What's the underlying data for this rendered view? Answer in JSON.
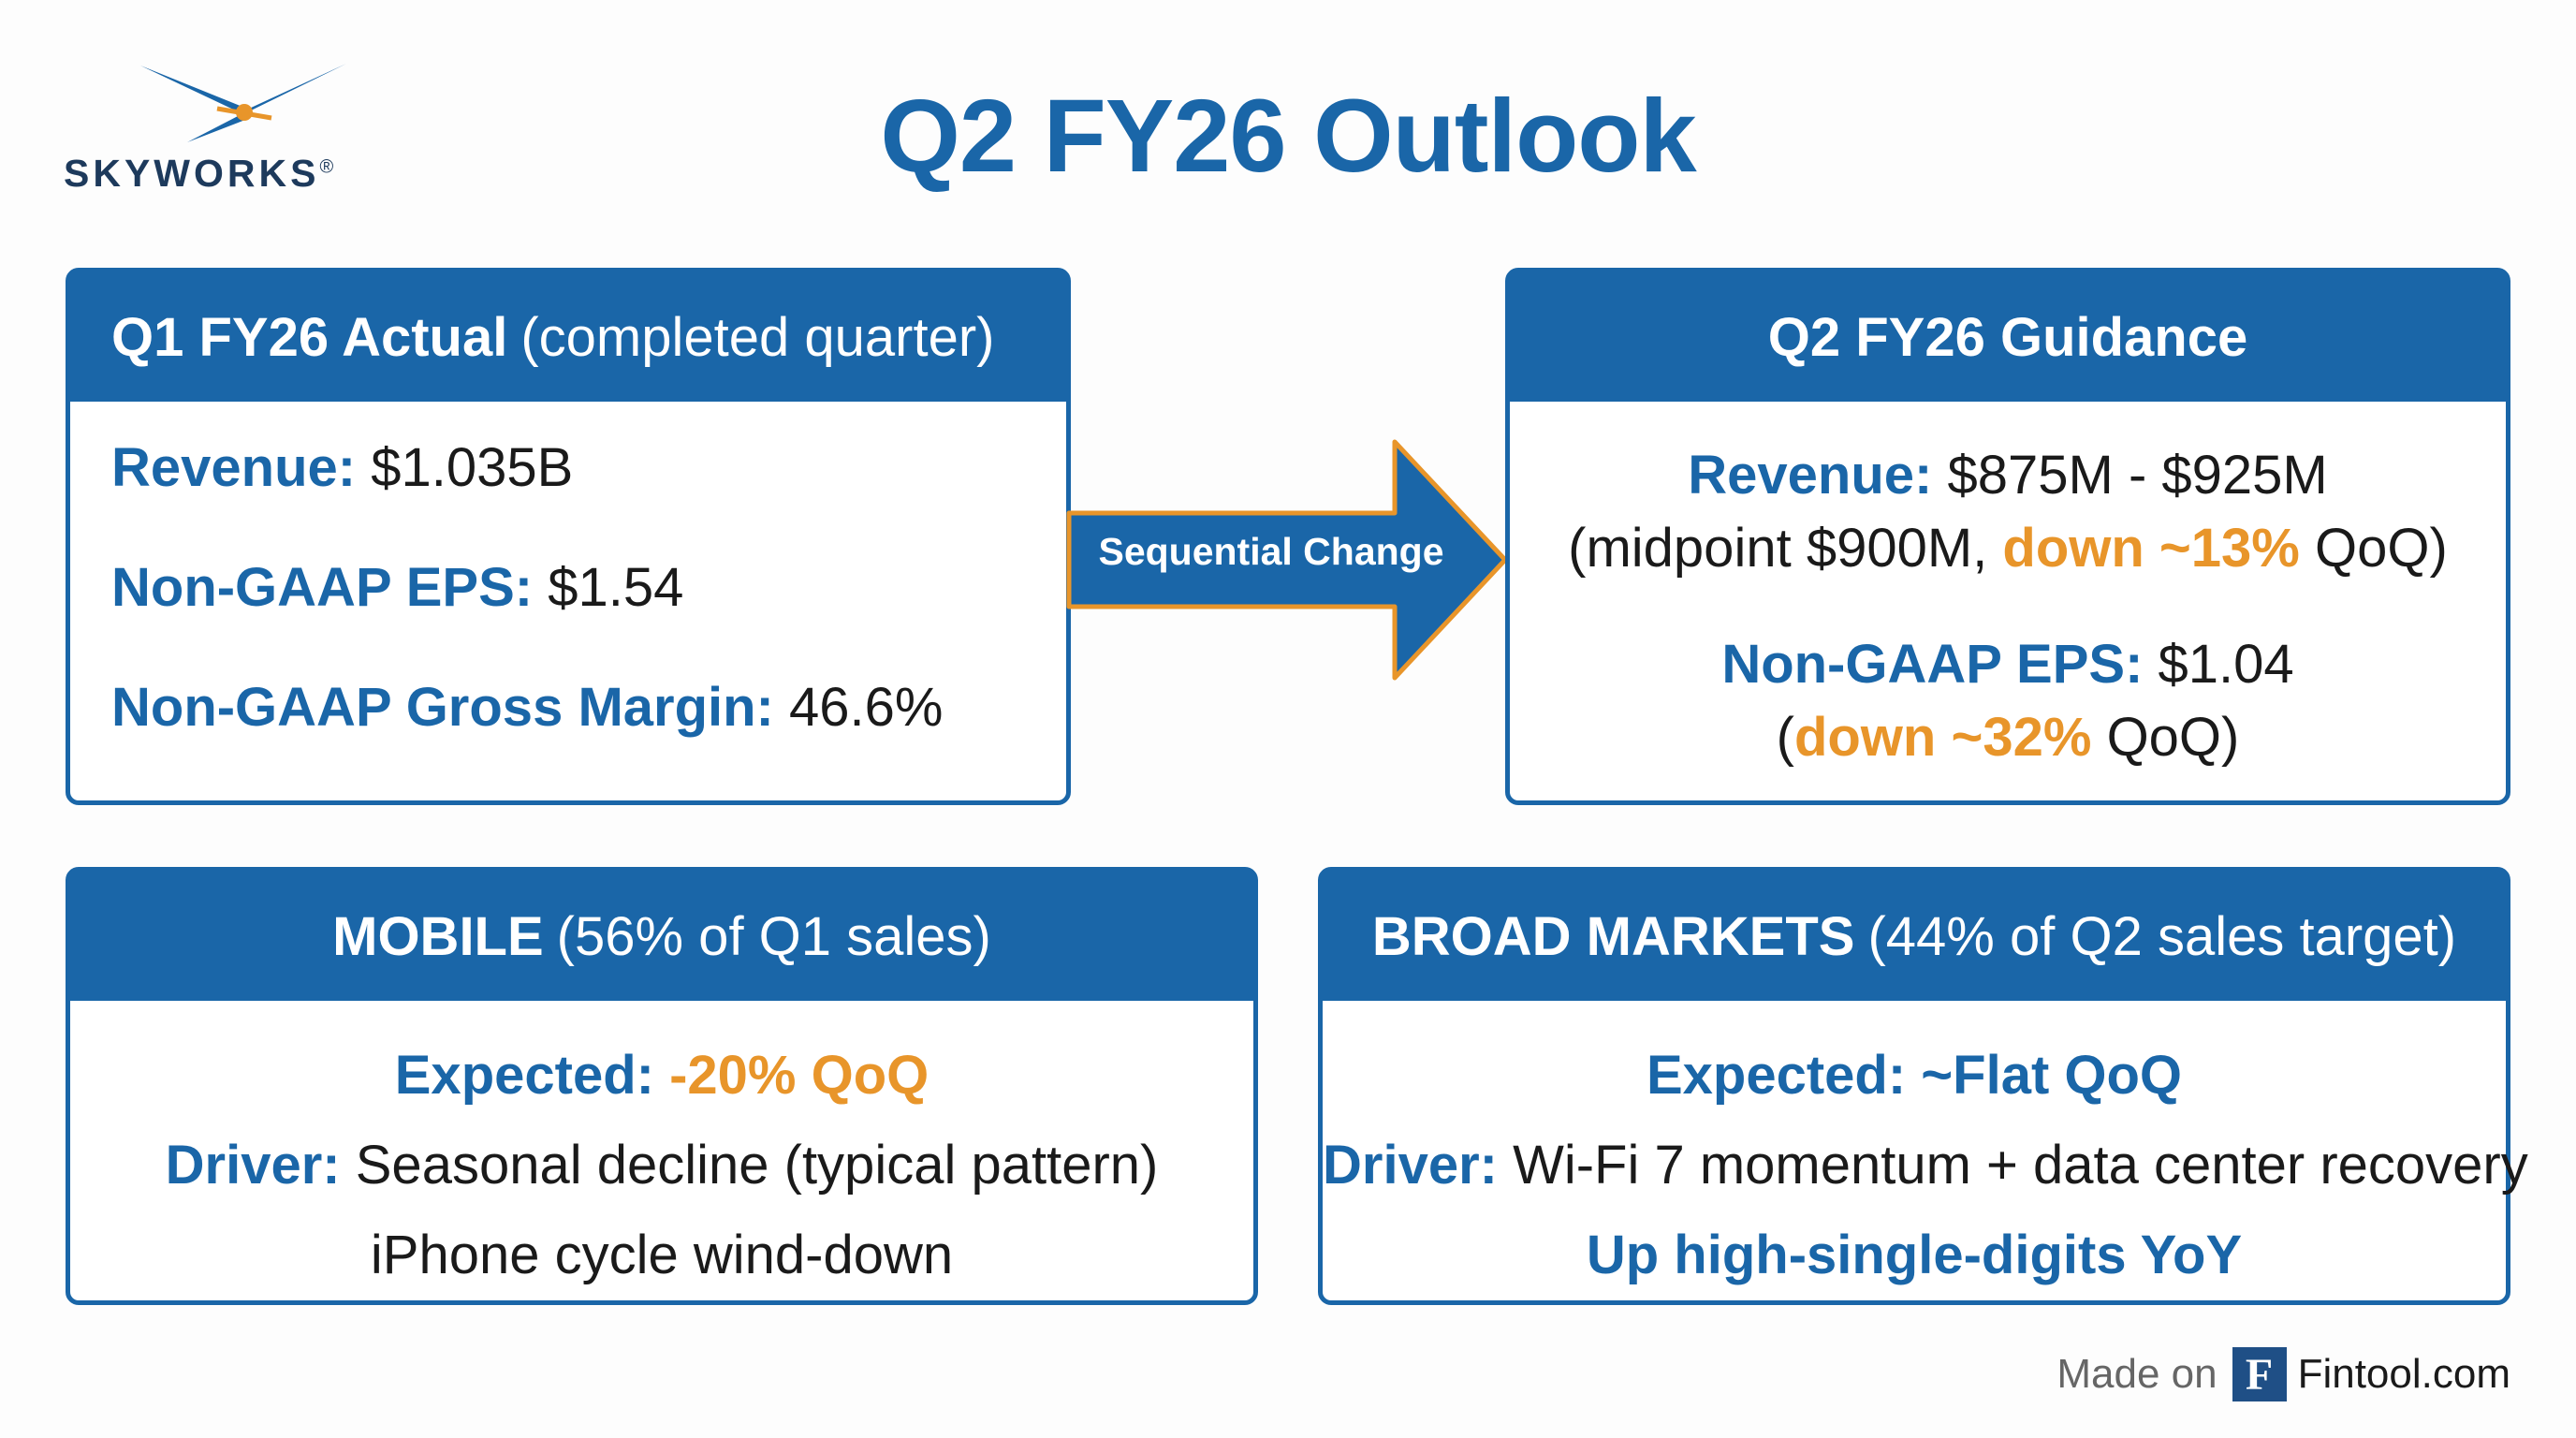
{
  "logo": {
    "wordmark": "SKYWORKS",
    "mark": "®"
  },
  "title": "Q2 FY26 Outlook",
  "actual": {
    "header_bold": "Q1 FY26 Actual",
    "header_light": "(completed quarter)",
    "revenue_label": "Revenue:",
    "revenue_value": "$1.035B",
    "eps_label": "Non-GAAP EPS:",
    "eps_value": "$1.54",
    "gm_label": "Non-GAAP Gross Margin:",
    "gm_value": "46.6%"
  },
  "arrow": {
    "label": "Sequential Change"
  },
  "guidance": {
    "header_bold": "Q2 FY26 Guidance",
    "revenue_label": "Revenue:",
    "revenue_value": "$875M - $925M",
    "rev_note_pre": "(midpoint $900M,",
    "rev_note_change": "down ~13%",
    "rev_note_post": "QoQ)",
    "eps_label": "Non-GAAP EPS:",
    "eps_value": "$1.04",
    "eps_note_open": "(",
    "eps_note_change": "down ~32%",
    "eps_note_post": "QoQ)"
  },
  "mobile": {
    "header_bold": "MOBILE",
    "header_light": "(56% of Q1 sales)",
    "expected_label": "Expected:",
    "expected_value": "-20% QoQ",
    "driver_label": "Driver:",
    "driver_value": "Seasonal decline (typical pattern)",
    "note": "iPhone cycle wind-down"
  },
  "broad": {
    "header_bold": "BROAD MARKETS",
    "header_light": "(44% of Q2 sales target)",
    "expected_label": "Expected:",
    "expected_value": "~Flat QoQ",
    "driver_label": "Driver:",
    "driver_value": "Wi-Fi 7 momentum + data center recovery",
    "note": "Up high-single-digits YoY"
  },
  "footer": {
    "made_on": "Made on",
    "icon_letter": "F",
    "site": "Fintool.com"
  },
  "colors": {
    "primary": "#1a66a8",
    "accent": "#e8952a",
    "logo_text": "#1d3a5c"
  }
}
